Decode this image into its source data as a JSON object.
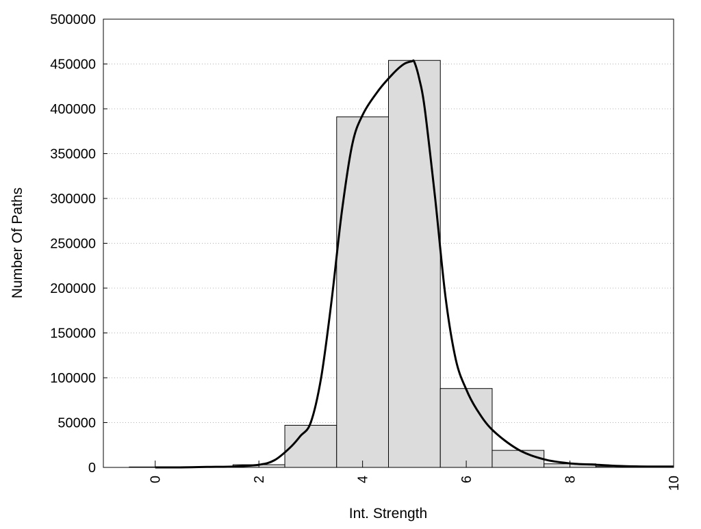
{
  "chart_data": {
    "type": "bar",
    "title": "",
    "xlabel": "Int. Strength",
    "ylabel": "Number Of Paths",
    "xlim": [
      -1,
      10
    ],
    "ylim": [
      0,
      500000
    ],
    "x_ticks": [
      "0",
      "2",
      "4",
      "6",
      "8",
      "10"
    ],
    "y_ticks": [
      "0",
      "50000",
      "100000",
      "150000",
      "200000",
      "250000",
      "300000",
      "350000",
      "400000",
      "450000",
      "500000"
    ],
    "grid": "horizontal dotted",
    "bar_color": "#dcdcdc",
    "bins": [
      {
        "from": -0.5,
        "to": 0.5,
        "value": 500
      },
      {
        "from": 0.5,
        "to": 1.5,
        "value": 800
      },
      {
        "from": 1.5,
        "to": 2.5,
        "value": 3000
      },
      {
        "from": 2.5,
        "to": 3.5,
        "value": 47000
      },
      {
        "from": 3.5,
        "to": 4.5,
        "value": 391000
      },
      {
        "from": 4.5,
        "to": 5.5,
        "value": 454000
      },
      {
        "from": 5.5,
        "to": 6.5,
        "value": 88000
      },
      {
        "from": 6.5,
        "to": 7.5,
        "value": 19000
      },
      {
        "from": 7.5,
        "to": 8.5,
        "value": 4000
      },
      {
        "from": 8.5,
        "to": 9.5,
        "value": 1000
      },
      {
        "from": 9.5,
        "to": 10.5,
        "value": 1000
      }
    ],
    "fit_curve": {
      "x": [
        0,
        0.5,
        1,
        1.5,
        2,
        2.3,
        2.6,
        2.8,
        3,
        3.2,
        3.4,
        3.6,
        3.8,
        4,
        4.3,
        4.6,
        4.8,
        4.95,
        5,
        5.1,
        5.2,
        5.4,
        5.6,
        5.8,
        6,
        6.2,
        6.5,
        7,
        7.5,
        8,
        8.5,
        9,
        9.5,
        10
      ],
      "y": [
        0,
        0,
        500,
        1000,
        3000,
        8000,
        22000,
        35000,
        50000,
        100000,
        185000,
        285000,
        360000,
        393000,
        420000,
        440000,
        450000,
        453000,
        452000,
        432000,
        400000,
        300000,
        190000,
        120000,
        87000,
        65000,
        42000,
        20000,
        9000,
        4500,
        3000,
        1500,
        1000,
        1000
      ]
    }
  }
}
